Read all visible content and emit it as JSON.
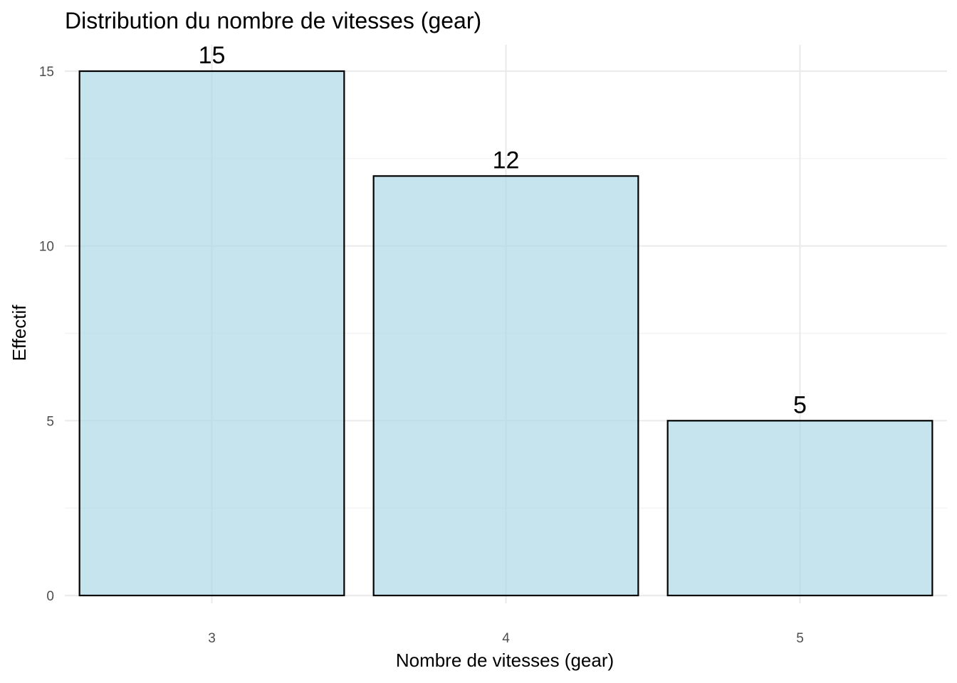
{
  "chart_data": {
    "type": "bar",
    "title": "Distribution du nombre de vitesses (gear)",
    "xlabel": "Nombre de vitesses (gear)",
    "ylabel": "Effectif",
    "categories": [
      "3",
      "4",
      "5"
    ],
    "values": [
      15,
      12,
      5
    ],
    "data_labels": [
      "15",
      "12",
      "5"
    ],
    "ylim": [
      0,
      15
    ],
    "y_ticks": [
      0,
      5,
      10,
      15
    ],
    "y_tick_labels": [
      "0",
      "5",
      "10",
      "15"
    ],
    "y_minor_ticks": [
      2.5,
      7.5,
      12.5
    ],
    "grid": true,
    "legend": "none",
    "colors": {
      "bar_fill": "#add8e6",
      "bar_fill_opacity": 0.7,
      "bar_outline": "#000000",
      "grid": "#ebebeb",
      "tick_text": "#4d4d4d"
    }
  }
}
